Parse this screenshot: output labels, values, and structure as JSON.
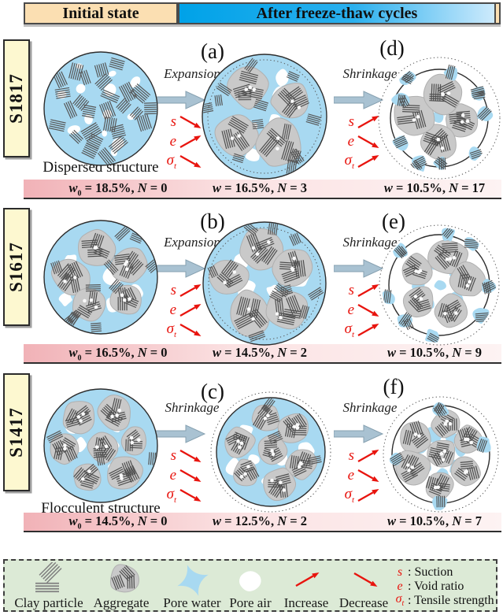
{
  "header": {
    "initial": "Initial state",
    "after": "After freeze-thaw cycles"
  },
  "colors": {
    "pore_water": "#a8d9f1",
    "aggregate_fill": "#c9c9c9",
    "aggregate_edge": "#b0b0b0",
    "clay_line": "#4e4e4e",
    "red_accent": "#e8140e",
    "big_arrow": "#a9c2d2",
    "initial_bg": "#fbdfb2",
    "after_blue": "#00a2e8",
    "sample_box_bg": "#fdf8d0",
    "bar_pink": "#f1b2b7",
    "legend_bg": "#dcead6"
  },
  "rows": [
    {
      "sample": "S1817",
      "caption": "Dispersed structure",
      "panels": [
        {
          "letter": "",
          "kind": "dispersed",
          "r": 72,
          "seed": 7
        },
        {
          "letter": "(a)",
          "kind": "wet",
          "r": 79,
          "dotted": "inside",
          "aggregates": 4,
          "freeClay": 14,
          "pores": 9,
          "seed": 21
        },
        {
          "letter": "(d)",
          "kind": "dry",
          "r": 62,
          "rDotted": 77,
          "aggregates": 4,
          "rim": 9,
          "seed": 31
        }
      ],
      "transitions": [
        {
          "label": "Expansion",
          "indicators": [
            {
              "sym": "s",
              "sub": "",
              "dir": "down"
            },
            {
              "sym": "e",
              "sub": "",
              "dir": "up"
            },
            {
              "sym": "σ",
              "sub": "t",
              "dir": "down"
            }
          ]
        },
        {
          "label": "Shrinkage",
          "indicators": [
            {
              "sym": "s",
              "sub": "",
              "dir": "up"
            },
            {
              "sym": "e",
              "sub": "",
              "dir": "down"
            },
            {
              "sym": "σ",
              "sub": "t",
              "dir": "up"
            }
          ]
        }
      ],
      "bar": [
        {
          "var": "w",
          "sub": "0",
          "val": "18.5%",
          "nvar": "N",
          "nval": "0"
        },
        {
          "var": "w",
          "sub": "",
          "val": "16.5%",
          "nvar": "N",
          "nval": "3"
        },
        {
          "var": "w",
          "sub": "",
          "val": "10.5%",
          "nvar": "N",
          "nval": "17"
        }
      ]
    },
    {
      "sample": "S1617",
      "caption": "",
      "panels": [
        {
          "letter": "",
          "kind": "wet",
          "r": 72,
          "aggregates": 5,
          "freeClay": 11,
          "pores": 7,
          "seed": 12
        },
        {
          "letter": "(b)",
          "kind": "wet",
          "r": 78,
          "dotted": "inside",
          "aggregates": 5,
          "freeClay": 10,
          "pores": 9,
          "seed": 22
        },
        {
          "letter": "(e)",
          "kind": "dry",
          "r": 64,
          "rDotted": 76,
          "aggregates": 5,
          "rim": 8,
          "seed": 32
        }
      ],
      "transitions": [
        {
          "label": "Expansion",
          "indicators": [
            {
              "sym": "s",
              "sub": "",
              "dir": "up"
            },
            {
              "sym": "e",
              "sub": "",
              "dir": "up"
            },
            {
              "sym": "σ",
              "sub": "t",
              "dir": "down"
            }
          ]
        },
        {
          "label": "Shrinkage",
          "indicators": [
            {
              "sym": "s",
              "sub": "",
              "dir": "up"
            },
            {
              "sym": "e",
              "sub": "",
              "dir": "down"
            },
            {
              "sym": "σ",
              "sub": "t",
              "dir": "up"
            }
          ]
        }
      ],
      "bar": [
        {
          "var": "w",
          "sub": "0",
          "val": "16.5%",
          "nvar": "N",
          "nval": "0"
        },
        {
          "var": "w",
          "sub": "",
          "val": "14.5%",
          "nvar": "N",
          "nval": "2"
        },
        {
          "var": "w",
          "sub": "",
          "val": "10.5%",
          "nvar": "N",
          "nval": "9"
        }
      ]
    },
    {
      "sample": "S1417",
      "caption": "Flocculent structure",
      "panels": [
        {
          "letter": "",
          "kind": "wet",
          "r": 72,
          "aggregates": 7,
          "freeClay": 3,
          "pores": 7,
          "seed": 13
        },
        {
          "letter": "(c)",
          "kind": "wet",
          "r": 69,
          "rDotted": 76,
          "dotted": "outside",
          "aggregates": 7,
          "freeClay": 3,
          "pores": 7,
          "seed": 23
        },
        {
          "letter": "(f)",
          "kind": "dry",
          "r": 62,
          "rDotted": 73,
          "aggregates": 7,
          "rim": 4,
          "seed": 33
        }
      ],
      "transitions": [
        {
          "label": "Shrinkage",
          "indicators": [
            {
              "sym": "s",
              "sub": "",
              "dir": "down"
            },
            {
              "sym": "e",
              "sub": "",
              "dir": "down"
            },
            {
              "sym": "σ",
              "sub": "t",
              "dir": "down"
            }
          ]
        },
        {
          "label": "Shrinkage",
          "indicators": [
            {
              "sym": "s",
              "sub": "",
              "dir": "up"
            },
            {
              "sym": "e",
              "sub": "",
              "dir": "down"
            },
            {
              "sym": "σ",
              "sub": "t",
              "dir": "up"
            }
          ]
        }
      ],
      "bar": [
        {
          "var": "w",
          "sub": "0",
          "val": "14.5%",
          "nvar": "N",
          "nval": "0"
        },
        {
          "var": "w",
          "sub": "",
          "val": "12.5%",
          "nvar": "N",
          "nval": "2"
        },
        {
          "var": "w",
          "sub": "",
          "val": "10.5%",
          "nvar": "N",
          "nval": "7"
        }
      ]
    }
  ],
  "legend": {
    "items": [
      "Clay particle",
      "Aggregate",
      "Pore water",
      "Pore air",
      "Increase",
      "Decrease"
    ],
    "defs": [
      {
        "sym": "s",
        "sub": "",
        "text": "Suction"
      },
      {
        "sym": "e",
        "sub": "",
        "text": "Void ratio"
      },
      {
        "sym": "σ",
        "sub": "t",
        "text": "Tensile strength"
      }
    ]
  }
}
